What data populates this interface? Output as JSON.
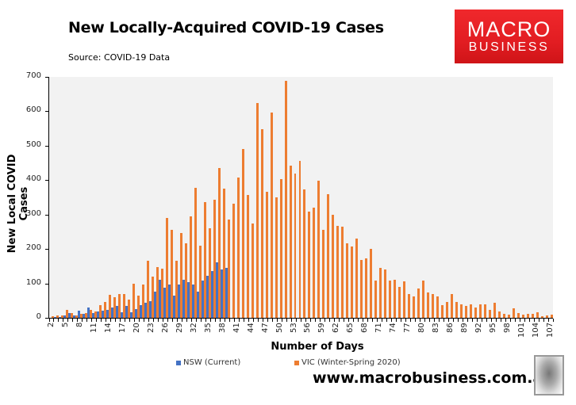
{
  "header": {
    "title": "New Locally-Acquired COVID-19 Cases",
    "source": "Source: COVID-19 Data"
  },
  "logo": {
    "line1": "MACRO",
    "line2": "BUSINESS",
    "bg_color": "#e21d22"
  },
  "footer": {
    "website": "www.macrobusiness.com.au"
  },
  "colors": {
    "nsw": "#4472c4",
    "vic": "#ed7d31",
    "plot_bg": "#f2f2f2"
  },
  "chart_data": {
    "type": "bar",
    "title": "New Locally-Acquired COVID-19 Cases",
    "subtitle": "Source: COVID-19 Data",
    "xlabel": "Number of Days",
    "ylabel": "New Local COVID Cases",
    "ylim": [
      0,
      700
    ],
    "yticks": [
      0,
      100,
      200,
      300,
      400,
      500,
      600,
      700
    ],
    "xtick_labels": [
      "2",
      "5",
      "8",
      "11",
      "14",
      "17",
      "20",
      "23",
      "26",
      "29",
      "32",
      "35",
      "38",
      "41",
      "44",
      "47",
      "50",
      "53",
      "56",
      "59",
      "62",
      "65",
      "68",
      "71",
      "74",
      "77",
      "80",
      "83",
      "86",
      "89",
      "92",
      "95",
      "98",
      "101",
      "104",
      "107"
    ],
    "legend_position": "bottom",
    "grid": false,
    "x_start": 2,
    "x_end": 107,
    "series": [
      {
        "name": "NSW (Current)",
        "color": "#4472c4",
        "values": [
          1,
          2,
          2,
          8,
          15,
          8,
          20,
          11,
          29,
          15,
          18,
          21,
          23,
          30,
          35,
          16,
          35,
          16,
          25,
          37,
          44,
          48,
          76,
          111,
          88,
          97,
          65,
          97,
          111,
          104,
          97,
          76,
          108,
          122,
          136,
          161,
          141,
          145
        ]
      },
      {
        "name": "VIC (Winter-Spring 2020)",
        "color": "#ed7d31",
        "values": [
          4,
          8,
          8,
          22,
          13,
          6,
          11,
          15,
          22,
          18,
          38,
          46,
          67,
          60,
          69,
          69,
          53,
          99,
          65,
          97,
          166,
          120,
          148,
          143,
          291,
          256,
          166,
          247,
          217,
          295,
          378,
          210,
          337,
          261,
          342,
          436,
          375,
          286,
          332,
          408,
          491,
          358,
          275,
          625,
          549,
          367,
          597,
          351,
          403,
          688,
          443,
          420,
          455,
          374,
          309,
          320,
          399,
          256,
          360,
          300,
          268,
          265,
          217,
          208,
          231,
          168,
          172,
          201,
          108,
          145,
          141,
          108,
          111,
          90,
          106,
          69,
          62,
          85,
          108,
          74,
          69,
          62,
          37,
          46,
          69,
          46,
          39,
          35,
          39,
          30,
          39,
          39,
          23,
          44,
          18,
          12,
          9,
          28,
          14,
          9,
          12,
          12,
          16,
          5,
          7,
          9
        ]
      }
    ]
  }
}
